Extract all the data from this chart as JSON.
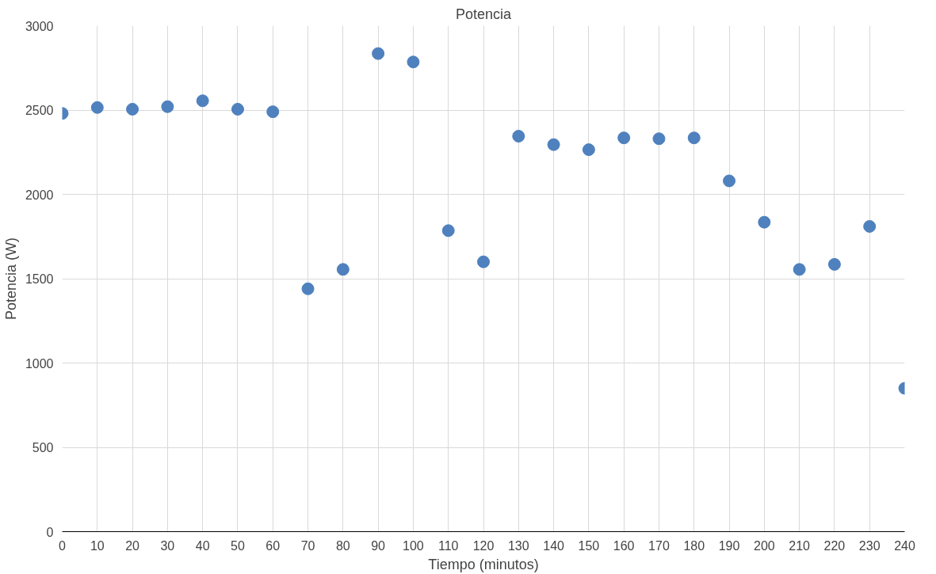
{
  "chart_data": {
    "type": "scatter",
    "title": "Potencia",
    "xlabel": "Tiempo (minutos)",
    "ylabel": "Potencia (W)",
    "x": [
      0,
      10,
      20,
      30,
      40,
      50,
      60,
      70,
      80,
      90,
      100,
      110,
      120,
      130,
      140,
      150,
      160,
      170,
      180,
      190,
      200,
      210,
      220,
      230,
      240
    ],
    "series": [
      {
        "color": "#4e81bd",
        "values": [
          2480,
          2515,
          2505,
          2520,
          2555,
          2505,
          2490,
          1440,
          1555,
          2835,
          2785,
          1785,
          1600,
          2345,
          2295,
          2265,
          2335,
          2330,
          2335,
          2080,
          1835,
          1555,
          1585,
          1810,
          850
        ]
      }
    ],
    "xlim": [
      0,
      240
    ],
    "ylim": [
      0,
      3000
    ],
    "xticks": [
      0,
      10,
      20,
      30,
      40,
      50,
      60,
      70,
      80,
      90,
      100,
      110,
      120,
      130,
      140,
      150,
      160,
      170,
      180,
      190,
      200,
      210,
      220,
      230,
      240
    ],
    "yticks": [
      0,
      500,
      1000,
      1500,
      2000,
      2500,
      3000
    ],
    "grid": true,
    "marker": "circle"
  }
}
